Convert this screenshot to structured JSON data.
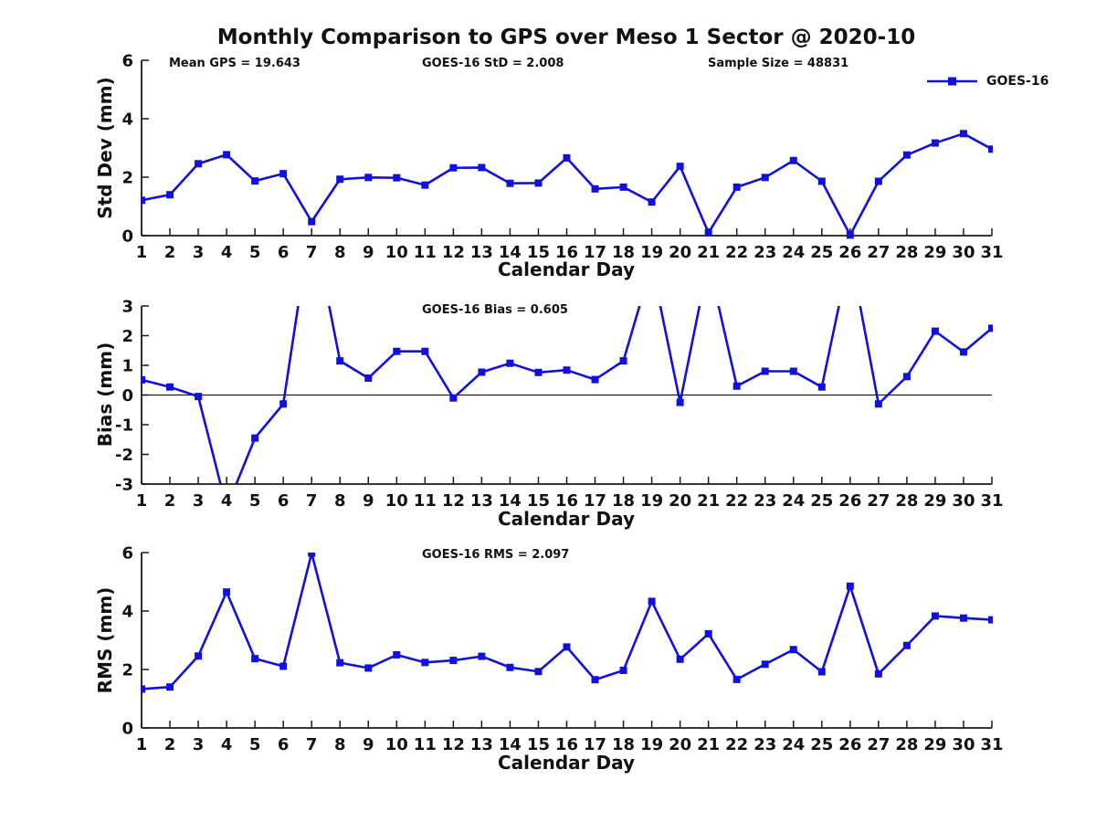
{
  "title": "Monthly Comparison to GPS over Meso 1 Sector @ 2020-10",
  "legend": {
    "label": "GOES-16"
  },
  "colors": {
    "line": "#1010e0",
    "text": "#111111",
    "axis": "#1a1a1a",
    "zero_line": "#000000"
  },
  "chart_data": [
    {
      "type": "line",
      "annotations": [
        "Mean GPS = 19.643",
        "GOES-16 StD = 2.008",
        "Sample Size = 48831"
      ],
      "ylabel": "Std Dev (mm)",
      "xlabel": "Calendar Day",
      "ylim": [
        0,
        6
      ],
      "yticks": [
        0,
        2,
        4,
        6
      ],
      "grid": false,
      "legend_position": "top-right",
      "x": [
        1,
        2,
        3,
        4,
        5,
        6,
        7,
        8,
        9,
        10,
        11,
        12,
        13,
        14,
        15,
        16,
        17,
        18,
        19,
        20,
        21,
        22,
        23,
        24,
        25,
        26,
        27,
        28,
        29,
        30,
        31
      ],
      "series": [
        {
          "name": "GOES-16",
          "values": [
            1.21,
            1.4,
            2.46,
            2.77,
            1.87,
            2.12,
            0.48,
            1.93,
            1.99,
            1.98,
            1.73,
            2.32,
            2.33,
            1.79,
            1.8,
            2.66,
            1.6,
            1.66,
            1.15,
            2.37,
            0.1,
            1.66,
            1.99,
            2.57,
            1.86,
            0.02,
            1.86,
            2.76,
            3.17,
            3.49,
            2.96
          ]
        }
      ]
    },
    {
      "type": "line",
      "annotations": [
        "GOES-16 Bias = 0.605"
      ],
      "ylabel": "Bias (mm)",
      "xlabel": "Calendar Day",
      "ylim": [
        -3,
        3
      ],
      "yticks": [
        -3,
        -2,
        -1,
        0,
        1,
        2,
        3
      ],
      "grid": false,
      "zero_line": true,
      "x": [
        1,
        2,
        3,
        4,
        5,
        6,
        7,
        8,
        9,
        10,
        11,
        12,
        13,
        14,
        15,
        16,
        17,
        18,
        19,
        20,
        21,
        22,
        23,
        24,
        25,
        26,
        27,
        28,
        29,
        30,
        31
      ],
      "series": [
        {
          "name": "GOES-16",
          "values": [
            0.51,
            0.27,
            -0.05,
            -3.8,
            -1.45,
            -0.3,
            6.0,
            1.15,
            0.57,
            1.47,
            1.47,
            -0.1,
            0.77,
            1.07,
            0.76,
            0.84,
            0.52,
            1.15,
            4.4,
            -0.25,
            4.5,
            0.3,
            0.8,
            0.8,
            0.27,
            4.8,
            -0.3,
            0.62,
            2.15,
            1.45,
            2.25
          ]
        }
      ]
    },
    {
      "type": "line",
      "annotations": [
        "GOES-16 RMS = 2.097"
      ],
      "ylabel": "RMS (mm)",
      "xlabel": "Calendar Day",
      "ylim": [
        0,
        6
      ],
      "yticks": [
        0,
        2,
        4,
        6
      ],
      "grid": false,
      "x": [
        1,
        2,
        3,
        4,
        5,
        6,
        7,
        8,
        9,
        10,
        11,
        12,
        13,
        14,
        15,
        16,
        17,
        18,
        19,
        20,
        21,
        22,
        23,
        24,
        25,
        26,
        27,
        28,
        29,
        30,
        31
      ],
      "series": [
        {
          "name": "GOES-16",
          "values": [
            1.33,
            1.4,
            2.46,
            4.65,
            2.37,
            2.11,
            5.98,
            2.23,
            2.05,
            2.5,
            2.24,
            2.31,
            2.45,
            2.07,
            1.93,
            2.77,
            1.65,
            1.97,
            4.33,
            2.35,
            3.22,
            1.66,
            2.18,
            2.68,
            1.92,
            4.85,
            1.85,
            2.82,
            3.83,
            3.76,
            3.7
          ]
        }
      ]
    }
  ]
}
